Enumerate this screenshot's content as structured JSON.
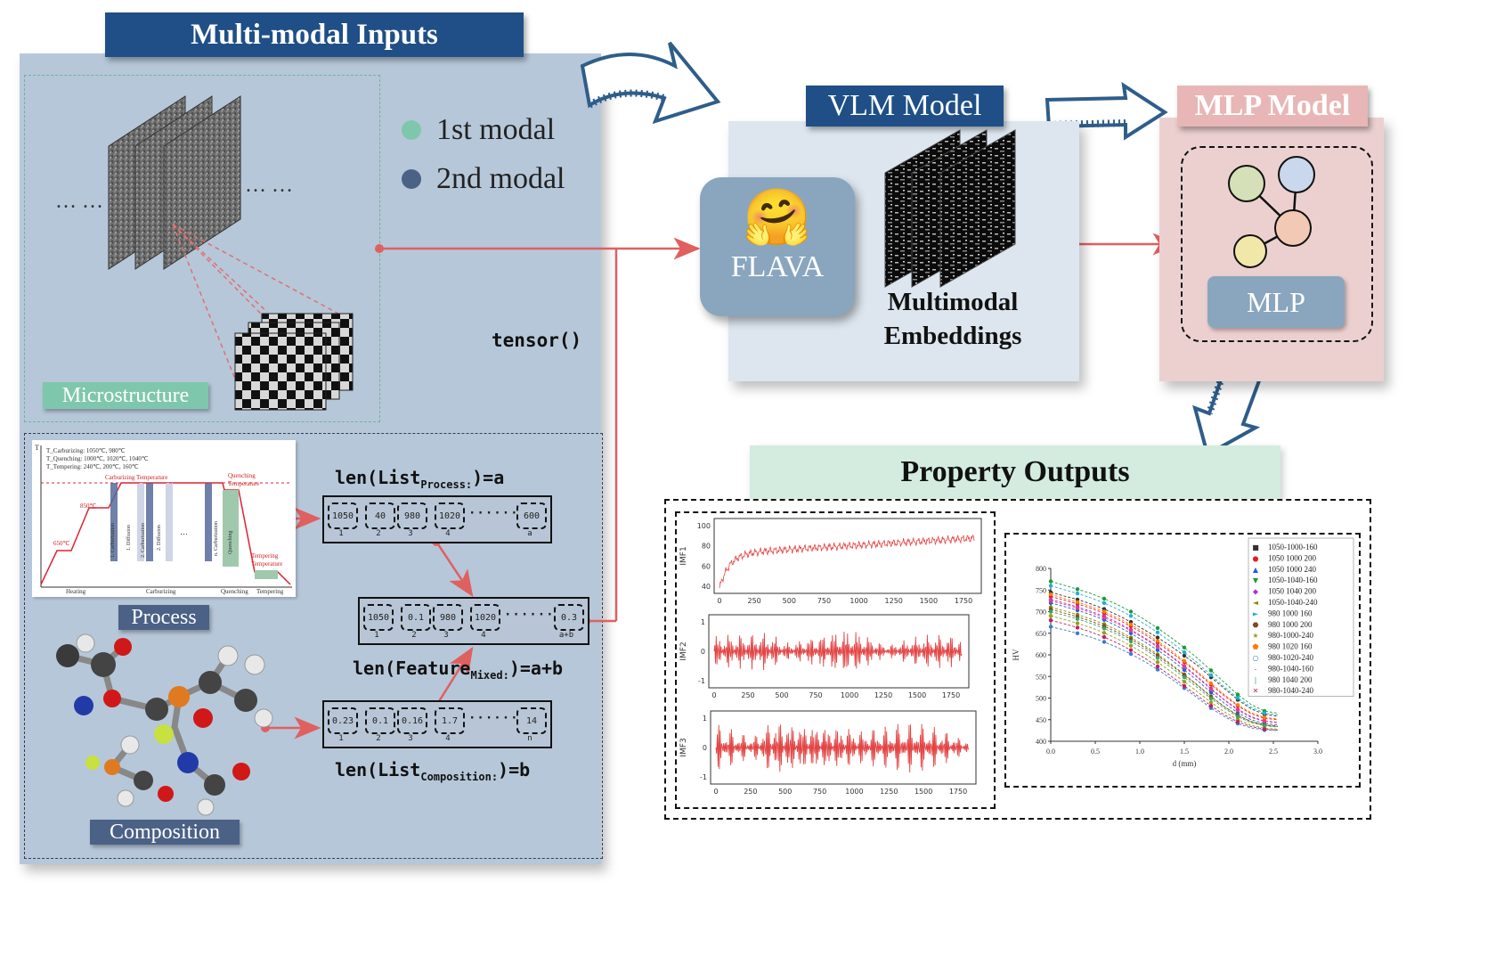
{
  "inputs": {
    "title": "Multi-modal Inputs",
    "legend": [
      {
        "label": "1st modal",
        "color": "#7fc7ac"
      },
      {
        "label": "2nd modal",
        "color": "#4b6186"
      }
    ],
    "microstructure_label": "Microstructure",
    "process_label": "Process",
    "composition_label": "Composition",
    "ellipsis_left": "… …",
    "ellipsis_right": "… …",
    "tensor_label": "tensor()",
    "process_chart_text": {
      "legend_lines": [
        "T_Carburizing: 1050℃, 980℃",
        "T_Quenching: 1000℃, 1020℃, 1040℃",
        "T_Tempering: 240℃, 200℃, 160℃"
      ],
      "top_labels": [
        "Carburizing Temperature",
        "Quenching Temperature",
        "Tempering Temperature"
      ],
      "left_temps": [
        "850℃",
        "650℃"
      ],
      "stage_labels": [
        "1. Carburization",
        "1. Diffusion",
        "2. Carburization",
        "2. Diffusion",
        "…",
        "n. Carburization",
        "Quenching"
      ],
      "bottom_labels": [
        "Heating",
        "Carburizing",
        "Quenching",
        "Tempering"
      ],
      "axis_t": "T"
    },
    "process_list": {
      "name": "List",
      "sub": "Process:",
      "suffix": ")=a",
      "cells": [
        "1050",
        "40",
        "980",
        "1020",
        "600"
      ],
      "indices": [
        "1",
        "2",
        "3",
        "4",
        "a"
      ]
    },
    "mixed_list": {
      "name": "Feature",
      "sub": "Mixed:",
      "suffix": ")=a+b",
      "cells": [
        "1050",
        "0.1",
        "980",
        "1020",
        "0.3"
      ],
      "indices": [
        "1",
        "2",
        "3",
        "4",
        "a+b"
      ]
    },
    "composition_list": {
      "name": "List",
      "sub": "Composition:",
      "suffix": ")=b",
      "cells": [
        "0.23",
        "0.1",
        "0.16",
        "1.7",
        "14"
      ],
      "indices": [
        "1",
        "2",
        "3",
        "4",
        "n"
      ]
    },
    "len_prefix": "len(",
    "row_ellipsis": "······"
  },
  "vlm": {
    "title": "VLM Model",
    "flava_label": "FLAVA",
    "flava_emoji": "🤗",
    "embeddings_line1": "Multimodal",
    "embeddings_line2": "Embeddings"
  },
  "mlp": {
    "title": "MLP Model",
    "box_label": "MLP",
    "node_colors": [
      "#d6e0b8",
      "#c9d8ec",
      "#f2c9b4",
      "#f1e7a9"
    ]
  },
  "outputs": {
    "title": "Property Outputs",
    "imf_charts": [
      {
        "ylabel": "IMF1",
        "yticks": [
          "100",
          "80",
          "60",
          "40"
        ],
        "xticks": [
          "0",
          "250",
          "500",
          "750",
          "1000",
          "1250",
          "1500",
          "1750"
        ]
      },
      {
        "ylabel": "IMF2",
        "yticks": [
          "1",
          "0",
          "-1"
        ],
        "xticks": [
          "0",
          "250",
          "500",
          "750",
          "1000",
          "1250",
          "1500",
          "1750"
        ]
      },
      {
        "ylabel": "IMF3",
        "yticks": [
          "1",
          "0",
          "-1"
        ],
        "xticks": [
          "0",
          "250",
          "500",
          "750",
          "1000",
          "1250",
          "1500",
          "1750"
        ]
      }
    ],
    "chart_data": {
      "type": "line",
      "title": "",
      "xlabel": "d (mm)",
      "ylabel": "HV",
      "xlim": [
        0.0,
        3.0
      ],
      "ylim": [
        400,
        800
      ],
      "xticks": [
        "0.0",
        "0.5",
        "1.0",
        "1.5",
        "2.0",
        "2.5",
        "3.0"
      ],
      "yticks": [
        "800",
        "750",
        "700",
        "650",
        "600",
        "550",
        "500",
        "450",
        "400"
      ],
      "legend_position": "top-right",
      "x": [
        0.0,
        0.15,
        0.3,
        0.45,
        0.6,
        0.75,
        0.9,
        1.05,
        1.2,
        1.35,
        1.5,
        1.65,
        1.8,
        1.95,
        2.1,
        2.25,
        2.4,
        2.55
      ],
      "series": [
        {
          "name": "1050-1000-160",
          "color": "#333333",
          "marker": "■",
          "values": [
            745,
            736,
            728,
            718,
            706,
            692,
            676,
            658,
            640,
            620,
            598,
            575,
            548,
            522,
            496,
            475,
            462,
            458
          ]
        },
        {
          "name": "1050 1000 200",
          "color": "#e02020",
          "marker": "●",
          "values": [
            735,
            727,
            718,
            708,
            696,
            682,
            666,
            648,
            628,
            606,
            583,
            558,
            531,
            505,
            482,
            464,
            453,
            450
          ]
        },
        {
          "name": "1050 1000 240",
          "color": "#1f5fe0",
          "marker": "▲",
          "values": [
            720,
            712,
            703,
            693,
            681,
            666,
            650,
            631,
            611,
            589,
            565,
            540,
            513,
            488,
            466,
            450,
            441,
            438
          ]
        },
        {
          "name": "1050-1040-160",
          "color": "#1a9a3a",
          "marker": "▼",
          "values": [
            770,
            761,
            752,
            742,
            730,
            716,
            700,
            682,
            662,
            640,
            617,
            592,
            564,
            536,
            508,
            485,
            470,
            465
          ]
        },
        {
          "name": "1050 1040 200",
          "color": "#b030d0",
          "marker": "◆",
          "values": [
            728,
            720,
            711,
            701,
            689,
            675,
            658,
            640,
            620,
            598,
            574,
            549,
            522,
            496,
            474,
            457,
            447,
            444
          ]
        },
        {
          "name": "1050-1040-240",
          "color": "#888800",
          "marker": "◄",
          "values": [
            710,
            702,
            693,
            683,
            671,
            657,
            640,
            622,
            601,
            579,
            555,
            530,
            504,
            480,
            460,
            445,
            437,
            434
          ]
        },
        {
          "name": "980 1000 160",
          "color": "#20b0d0",
          "marker": "►",
          "values": [
            760,
            751,
            742,
            732,
            720,
            706,
            690,
            672,
            652,
            630,
            606,
            581,
            553,
            526,
            500,
            479,
            465,
            461
          ]
        },
        {
          "name": "980 1000 200",
          "color": "#7a4a2a",
          "marker": "⬣",
          "values": [
            705,
            697,
            688,
            678,
            666,
            652,
            636,
            618,
            598,
            576,
            553,
            529,
            503,
            480,
            460,
            446,
            438,
            435
          ]
        },
        {
          "name": "980-1000-240",
          "color": "#9a9a20",
          "marker": "★",
          "values": [
            690,
            682,
            673,
            663,
            651,
            637,
            621,
            603,
            583,
            561,
            538,
            514,
            490,
            468,
            450,
            437,
            430,
            428
          ]
        },
        {
          "name": "980 1020 160",
          "color": "#ff7a00",
          "marker": "⬟",
          "values": [
            740,
            731,
            722,
            712,
            700,
            686,
            670,
            652,
            632,
            610,
            586,
            561,
            534,
            508,
            484,
            466,
            455,
            452
          ]
        },
        {
          "name": "980-1020-240",
          "color": "#3a7ad0",
          "marker": "○",
          "values": [
            665,
            658,
            650,
            641,
            630,
            617,
            602,
            585,
            566,
            545,
            523,
            500,
            477,
            457,
            441,
            431,
            426,
            425
          ]
        },
        {
          "name": "980-1040-160",
          "color": "#e04080",
          "marker": "-",
          "values": [
            725,
            717,
            708,
            698,
            686,
            672,
            656,
            638,
            618,
            596,
            572,
            547,
            520,
            495,
            472,
            455,
            446,
            443
          ]
        },
        {
          "name": "980 1040 200",
          "color": "#40a060",
          "marker": "|",
          "values": [
            700,
            692,
            683,
            673,
            661,
            647,
            631,
            613,
            593,
            571,
            548,
            524,
            499,
            476,
            457,
            443,
            436,
            433
          ]
        },
        {
          "name": "980-1040-240",
          "color": "#c02060",
          "marker": "✕",
          "values": [
            680,
            672,
            663,
            653,
            641,
            627,
            611,
            593,
            573,
            551,
            528,
            505,
            482,
            461,
            445,
            434,
            428,
            426
          ]
        }
      ]
    }
  }
}
